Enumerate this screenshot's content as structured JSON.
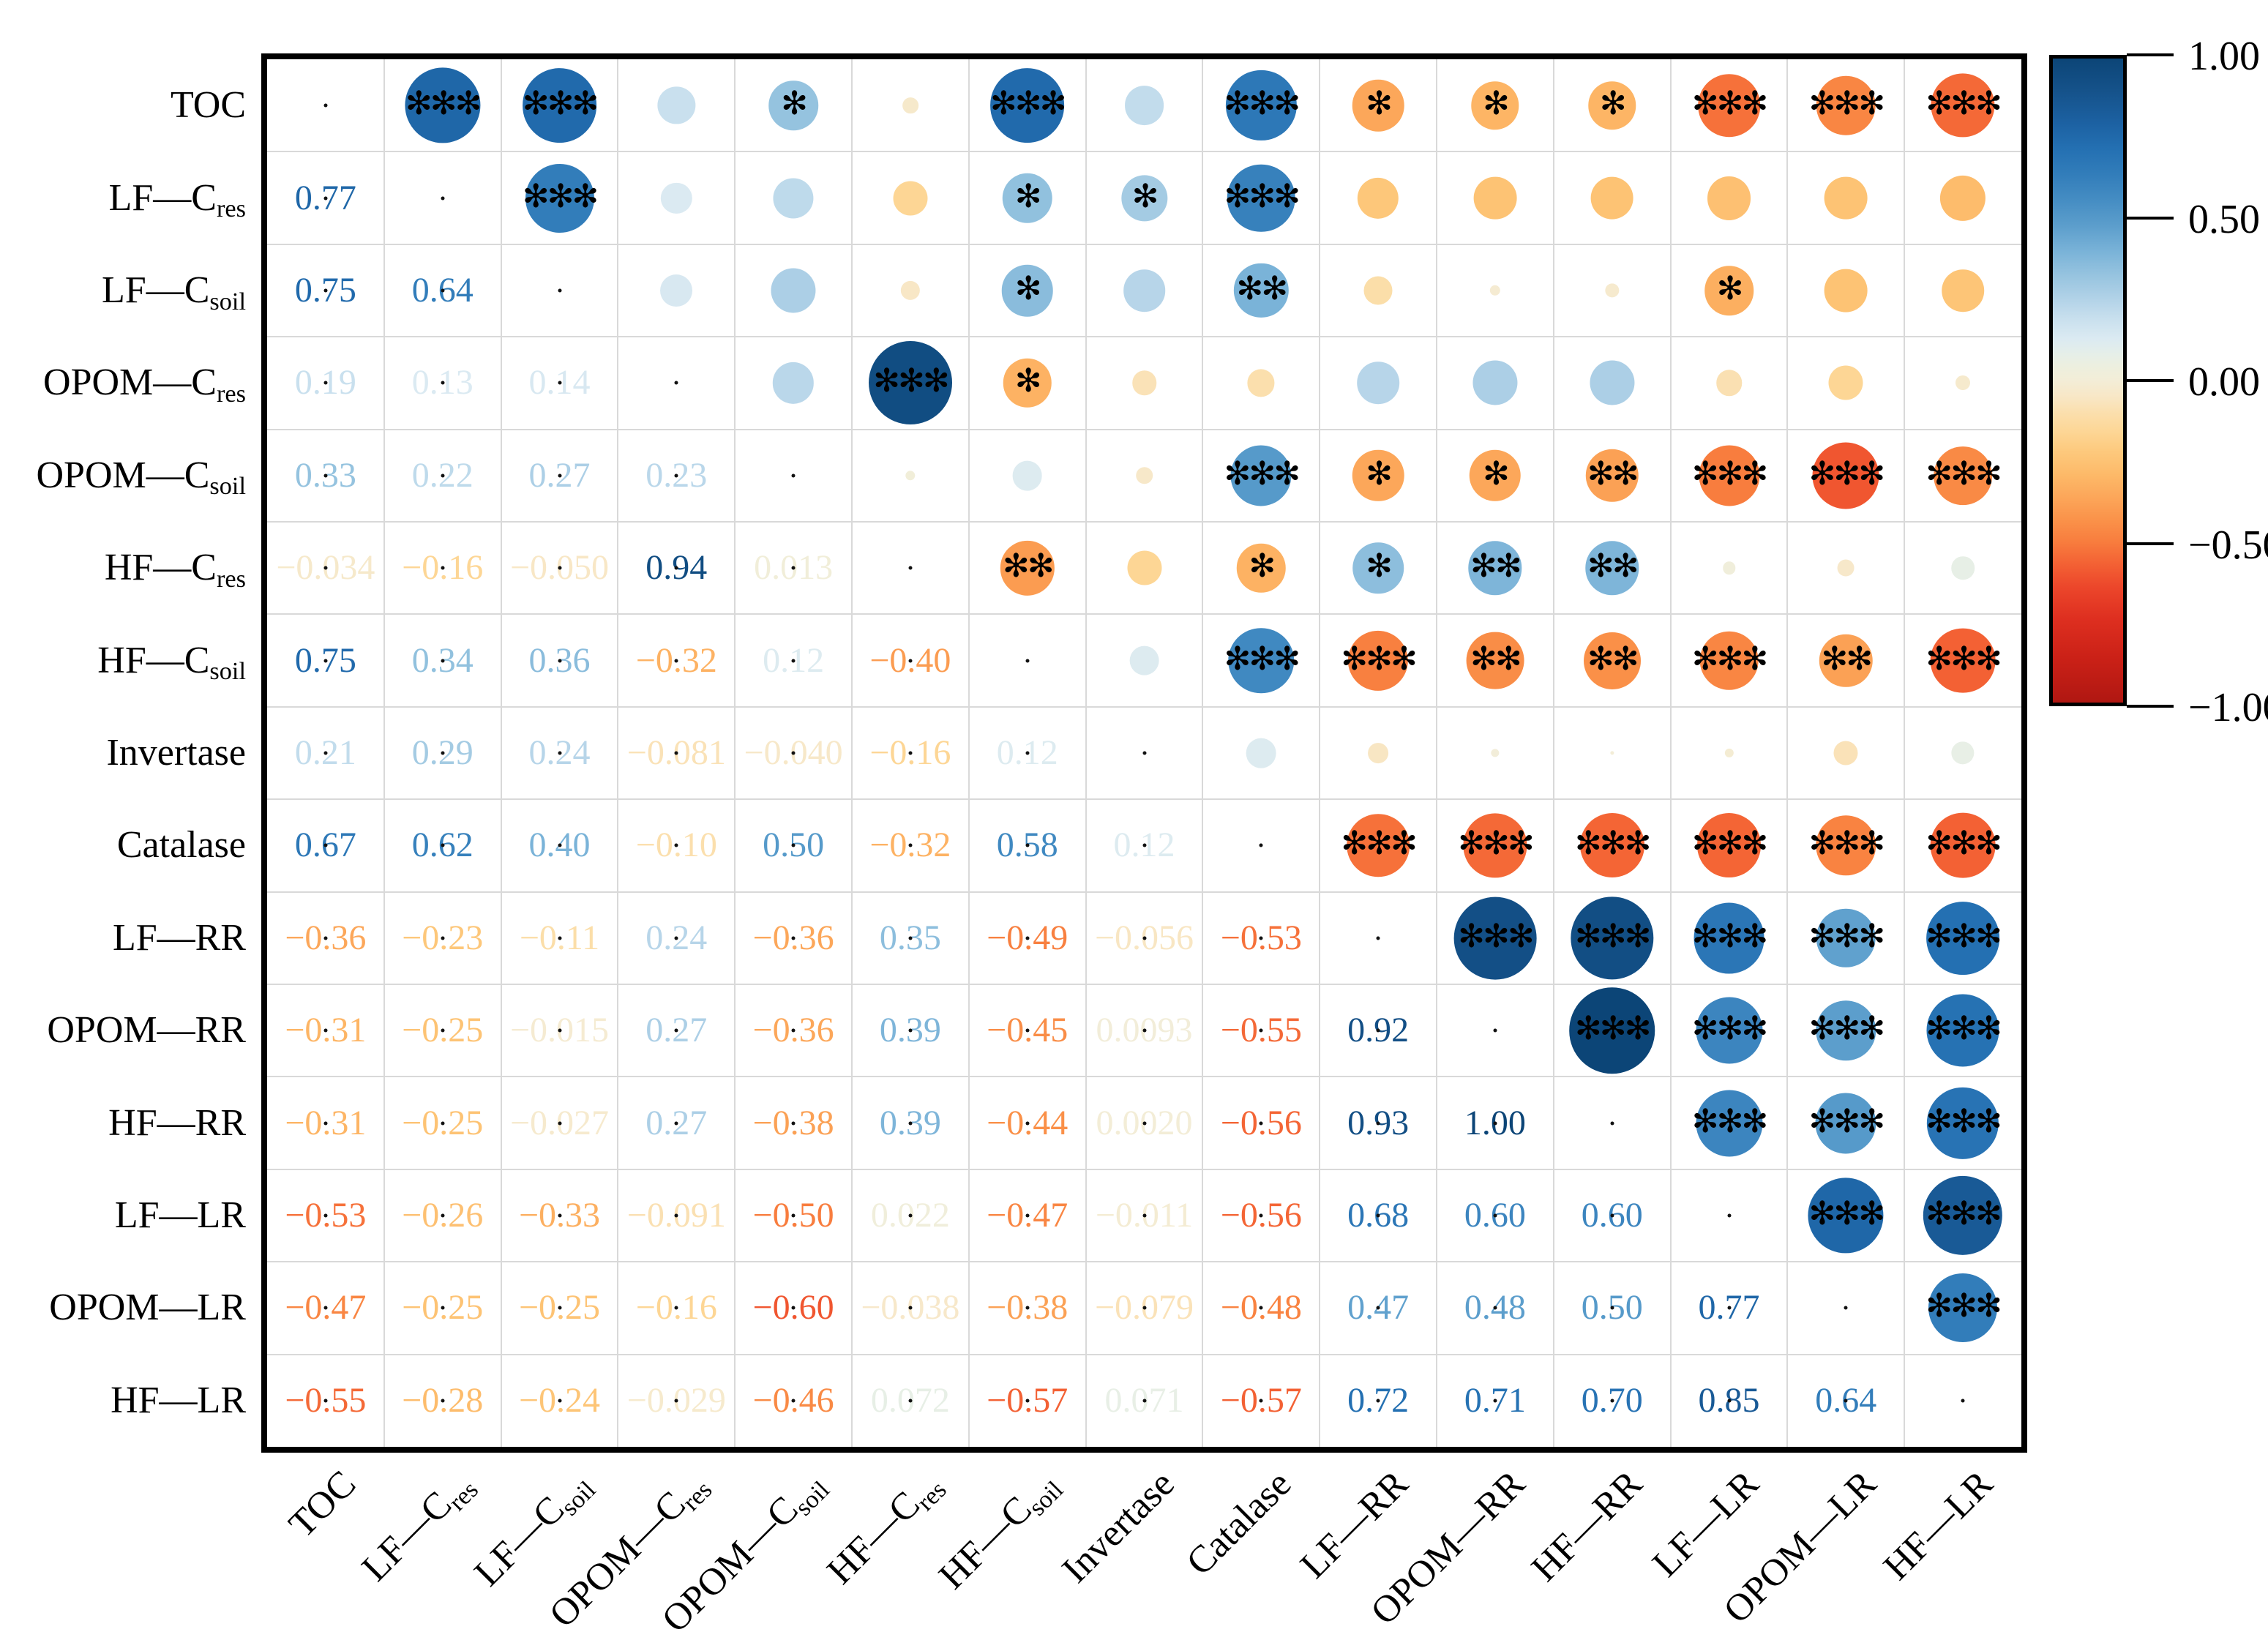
{
  "chart_data": {
    "type": "correlation-matrix-bubble",
    "title": "",
    "legend_position": "right",
    "grid": true,
    "variables": [
      {
        "label": "TOC",
        "sub": ""
      },
      {
        "label": "LF—C",
        "sub": "res"
      },
      {
        "label": "LF—C",
        "sub": "soil"
      },
      {
        "label": "OPOM—C",
        "sub": "res"
      },
      {
        "label": "OPOM—C",
        "sub": "soil"
      },
      {
        "label": "HF—C",
        "sub": "res"
      },
      {
        "label": "HF—C",
        "sub": "soil"
      },
      {
        "label": "Invertase",
        "sub": ""
      },
      {
        "label": "Catalase",
        "sub": ""
      },
      {
        "label": "LF—RR",
        "sub": ""
      },
      {
        "label": "OPOM—RR",
        "sub": ""
      },
      {
        "label": "HF—RR",
        "sub": ""
      },
      {
        "label": "LF—LR",
        "sub": ""
      },
      {
        "label": "OPOM—LR",
        "sub": ""
      },
      {
        "label": "HF—LR",
        "sub": ""
      }
    ],
    "lower_triangle_values": [
      [],
      [
        "0.77"
      ],
      [
        "0.75",
        "0.64"
      ],
      [
        "0.19",
        "0.13",
        "0.14"
      ],
      [
        "0.33",
        "0.22",
        "0.27",
        "0.23"
      ],
      [
        "-0.034",
        "-0.16",
        "-0.050",
        "0.94",
        "0.013"
      ],
      [
        "0.75",
        "0.34",
        "0.36",
        "-0.32",
        "0.12",
        "-0.40"
      ],
      [
        "0.21",
        "0.29",
        "0.24",
        "-0.081",
        "-0.040",
        "-0.16",
        "0.12"
      ],
      [
        "0.67",
        "0.62",
        "0.40",
        "-0.10",
        "0.50",
        "-0.32",
        "0.58",
        "0.12"
      ],
      [
        "-0.36",
        "-0.23",
        "-0.11",
        "0.24",
        "-0.36",
        "0.35",
        "-0.49",
        "-0.056",
        "-0.53"
      ],
      [
        "-0.31",
        "-0.25",
        "-0.015",
        "0.27",
        "-0.36",
        "0.39",
        "-0.45",
        "0.0093",
        "-0.55",
        "0.92"
      ],
      [
        "-0.31",
        "-0.25",
        "-0.027",
        "0.27",
        "-0.38",
        "0.39",
        "-0.44",
        "0.0020",
        "-0.56",
        "0.93",
        "1.00"
      ],
      [
        "-0.53",
        "-0.26",
        "-0.33",
        "-0.091",
        "-0.50",
        "0.022",
        "-0.47",
        "-0.011",
        "-0.56",
        "0.68",
        "0.60",
        "0.60"
      ],
      [
        "-0.47",
        "-0.25",
        "-0.25",
        "-0.16",
        "-0.60",
        "-0.038",
        "-0.38",
        "-0.079",
        "-0.48",
        "0.47",
        "0.48",
        "0.50",
        "0.77"
      ],
      [
        "-0.55",
        "-0.28",
        "-0.24",
        "-0.029",
        "-0.46",
        "0.072",
        "-0.57",
        "0.071",
        "-0.57",
        "0.72",
        "0.71",
        "0.70",
        "0.85",
        "0.64"
      ]
    ],
    "upper_triangle_significance": [
      [
        "***",
        "***",
        "",
        "*",
        "",
        "***",
        "",
        "***",
        "*",
        "*",
        "*",
        "***",
        "***",
        "***"
      ],
      [
        "***",
        "",
        "",
        "",
        "*",
        "*",
        "***",
        "",
        "",
        "",
        "",
        "",
        ""
      ],
      [
        "",
        "",
        "",
        "*",
        "",
        "**",
        "",
        "",
        "",
        "*",
        "",
        ""
      ],
      [
        "",
        "***",
        "*",
        "",
        "",
        "",
        "",
        "",
        "",
        "",
        ""
      ],
      [
        "",
        "",
        "",
        "***",
        "*",
        "*",
        "**",
        "***",
        "***",
        "***"
      ],
      [
        "**",
        "",
        "*",
        "*",
        "**",
        "**",
        "",
        "",
        ""
      ],
      [
        "",
        "***",
        "***",
        "**",
        "**",
        "***",
        "**",
        "***"
      ],
      [
        "",
        "",
        "",
        "",
        "",
        "",
        ""
      ],
      [
        "***",
        "***",
        "***",
        "***",
        "***",
        "***"
      ],
      [
        "***",
        "***",
        "***",
        "***",
        "***"
      ],
      [
        "***",
        "***",
        "***",
        "***"
      ],
      [
        "***",
        "***",
        "***"
      ],
      [
        "***",
        "***"
      ],
      [
        "***"
      ]
    ],
    "star_glyph": "✻",
    "colorbar": {
      "max": 1,
      "min": -1,
      "tick_labels": [
        "1.00",
        "0.50",
        "0.00",
        "-0.50",
        "-1.00"
      ]
    },
    "palette": [
      [
        1.0,
        "#0c4577"
      ],
      [
        0.9,
        "#15528a"
      ],
      [
        0.8,
        "#1c61a2"
      ],
      [
        0.72,
        "#2470b2"
      ],
      [
        0.64,
        "#327dba"
      ],
      [
        0.56,
        "#458dc3"
      ],
      [
        0.48,
        "#5c9ecc"
      ],
      [
        0.4,
        "#7ab3d8"
      ],
      [
        0.32,
        "#99c5e0"
      ],
      [
        0.25,
        "#b3d3e8"
      ],
      [
        0.19,
        "#c9e0ee"
      ],
      [
        0.13,
        "#dbeaf2"
      ],
      [
        0.08,
        "#e6efe8"
      ],
      [
        0.04,
        "#edefde"
      ],
      [
        0.0,
        "#f3edd7"
      ],
      [
        -0.05,
        "#f8e7c6"
      ],
      [
        -0.1,
        "#fbdfad"
      ],
      [
        -0.16,
        "#fdd695"
      ],
      [
        -0.22,
        "#fdc97d"
      ],
      [
        -0.29,
        "#fdba69"
      ],
      [
        -0.36,
        "#fca75a"
      ],
      [
        -0.43,
        "#fa934a"
      ],
      [
        -0.5,
        "#f87d3e"
      ],
      [
        -0.57,
        "#f36134"
      ],
      [
        -0.64,
        "#ec472b"
      ],
      [
        -0.74,
        "#de2f20"
      ],
      [
        -0.86,
        "#cb2117"
      ],
      [
        -1.0,
        "#b01712"
      ]
    ],
    "grid_color": "#d9d9d9",
    "border_color": "#000000"
  }
}
